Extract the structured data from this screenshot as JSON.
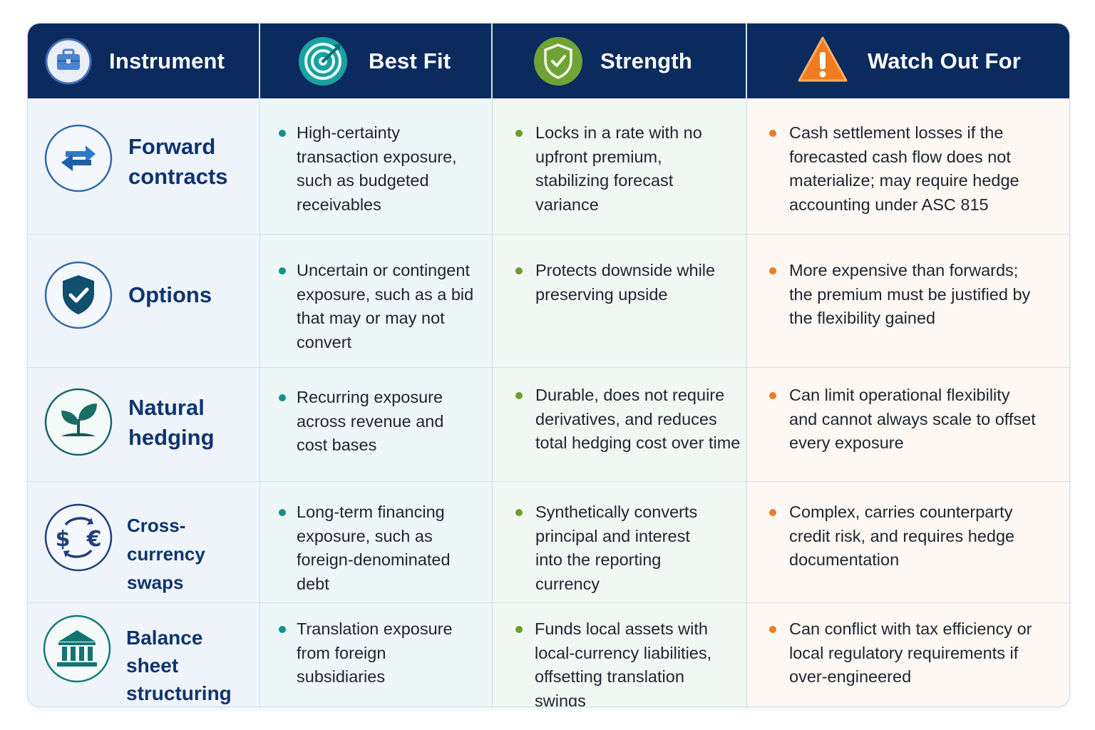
{
  "header": {
    "columns": [
      {
        "label": "Instrument",
        "icon": "briefcase-icon"
      },
      {
        "label": "Best Fit",
        "icon": "target-icon"
      },
      {
        "label": "Strength",
        "icon": "shield-check-icon"
      },
      {
        "label": "Watch Out For",
        "icon": "warning-icon"
      }
    ]
  },
  "rows": [
    {
      "instrument": "Forward contracts",
      "icon": "exchange-arrows-icon",
      "best_fit": "High-certainty transaction exposure, such as budgeted receivables",
      "strength": "Locks in a rate with no upfront premium, stabilizing forecast variance",
      "watch_out": "Cash settlement losses if the forecasted cash flow does not materialize; may require hedge accounting under ASC 815"
    },
    {
      "instrument": "Options",
      "icon": "shield-check-icon",
      "best_fit": "Uncertain or contingent exposure, such as a bid that may or may not convert",
      "strength": "Protects downside while preserving upside",
      "watch_out": "More expensive than forwards; the premium must be justified by the flexibility gained"
    },
    {
      "instrument": "Natural hedging",
      "icon": "sprout-icon",
      "best_fit": "Recurring exposure across revenue and cost bases",
      "strength": "Durable, does not require derivatives, and reduces total hedging cost over time",
      "watch_out": "Can limit operational flexibility and cannot always scale to offset every exposure"
    },
    {
      "instrument": "Cross-currency swaps",
      "icon": "currency-swap-icon",
      "currency_symbols": [
        "$",
        "€"
      ],
      "best_fit": "Long-term financing exposure, such as foreign-denominated debt",
      "strength": "Synthetically converts principal and interest into the reporting currency",
      "watch_out": "Complex, carries counterparty credit risk, and requires hedge documentation"
    },
    {
      "instrument": "Balance sheet structuring",
      "icon": "bank-building-icon",
      "best_fit": "Translation exposure from foreign subsidiaries",
      "strength": "Funds local assets with local-currency liabilities, offsetting translation swings",
      "watch_out": "Can conflict with tax efficiency or local regulatory requirements if over-engineered"
    }
  ],
  "colors": {
    "header_bg": "#0b2a5e",
    "label_text": "#0f3470",
    "teal": "#13908f",
    "green": "#6c9e2c",
    "orange": "#ef7b22"
  }
}
